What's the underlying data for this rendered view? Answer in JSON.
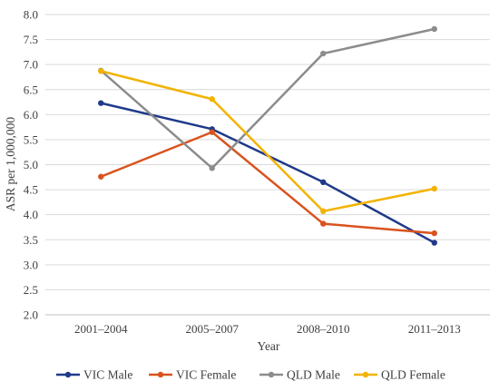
{
  "chart_data": {
    "type": "line",
    "title": "",
    "xlabel": "Year",
    "ylabel": "ASR per 1,000,000",
    "categories": [
      "2001–2004",
      "2005–2007",
      "2008–2010",
      "2011–2013"
    ],
    "ylim": [
      2.0,
      8.0
    ],
    "yticks": [
      "2.0",
      "2.5",
      "3.0",
      "3.5",
      "4.0",
      "4.5",
      "5.0",
      "5.5",
      "6.0",
      "6.5",
      "7.0",
      "7.5",
      "8.0"
    ],
    "grid": "horizontal",
    "legend_position": "bottom",
    "series": [
      {
        "name": "VIC Male",
        "color": "#1f3a8a",
        "values": [
          6.23,
          5.71,
          4.65,
          3.44
        ]
      },
      {
        "name": "VIC Female",
        "color": "#d9531e",
        "values": [
          4.76,
          5.65,
          3.82,
          3.63
        ]
      },
      {
        "name": "QLD Male",
        "color": "#8c8c8c",
        "values": [
          6.88,
          4.93,
          7.22,
          7.71
        ]
      },
      {
        "name": "QLD Female",
        "color": "#f2b300",
        "values": [
          6.87,
          6.31,
          4.07,
          4.52
        ]
      }
    ]
  }
}
